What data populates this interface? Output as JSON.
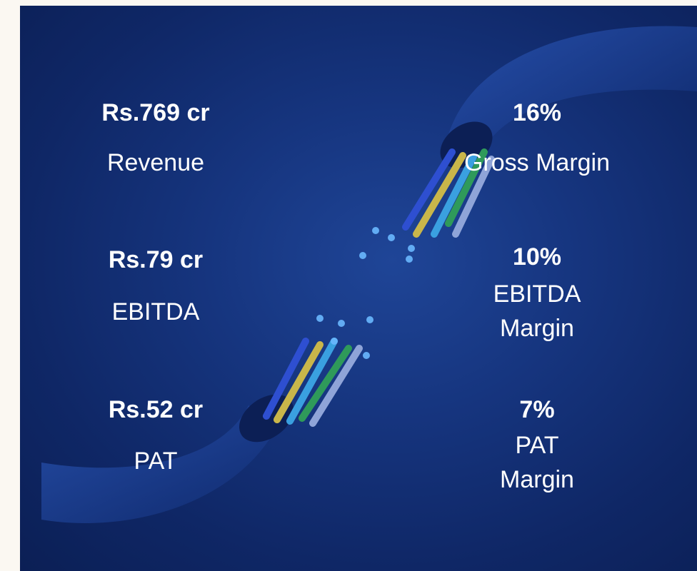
{
  "left": [
    {
      "value": "Rs.769 cr",
      "label": [
        "Revenue"
      ]
    },
    {
      "value": "Rs.79 cr",
      "label": [
        "EBITDA"
      ]
    },
    {
      "value": "Rs.52 cr",
      "label": [
        "PAT"
      ]
    }
  ],
  "right": [
    {
      "value": "16%",
      "label": [
        "Gross Margin"
      ]
    },
    {
      "value": "10%",
      "label": [
        "EBITDA",
        "Margin"
      ]
    },
    {
      "value": "7%",
      "label": [
        "PAT",
        "Margin"
      ]
    }
  ]
}
